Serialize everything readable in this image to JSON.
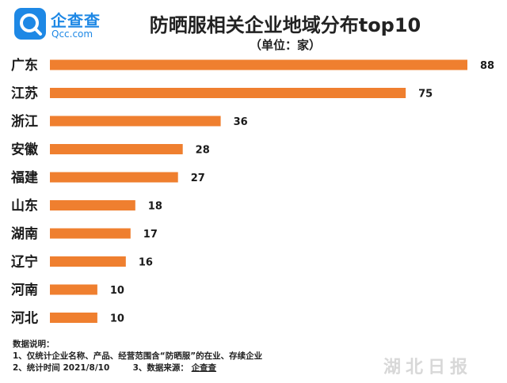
{
  "brand": {
    "name_cn": "企查查",
    "name_en": "Qcc.com"
  },
  "watermark": "湖北日报",
  "chart_data": {
    "type": "bar",
    "orientation": "horizontal",
    "title": "防晒服相关企业地域分布top10",
    "subtitle": "（单位：家）",
    "categories": [
      "广东",
      "江苏",
      "浙江",
      "安徽",
      "福建",
      "山东",
      "湖南",
      "辽宁",
      "河南",
      "河北"
    ],
    "values": [
      88,
      75,
      36,
      28,
      27,
      18,
      17,
      16,
      10,
      10
    ],
    "bar_color": "#ef7f2f",
    "grid": false,
    "axis_visible": false
  },
  "notes": {
    "heading": "数据说明：",
    "line1": "1、仅统计企业名称、产品、经营范围含“防晒服”的在业、存续企业",
    "line2a": "2、统计时间  2021/8/10",
    "line2b": "3、数据来源：",
    "source": "企查查"
  }
}
